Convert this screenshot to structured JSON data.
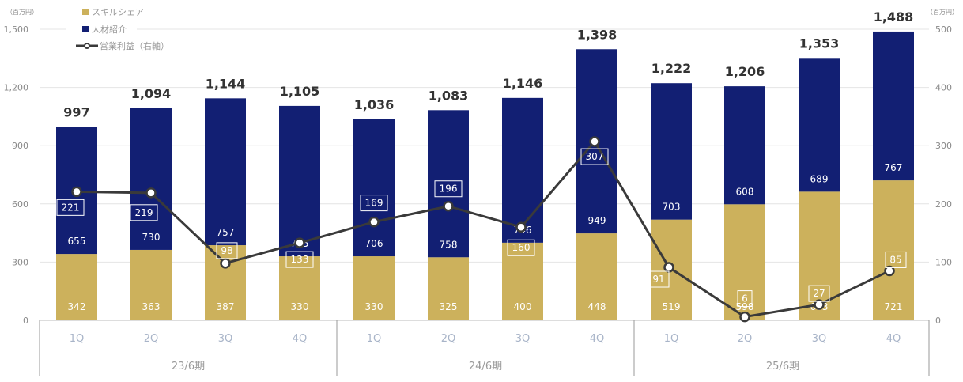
{
  "chart_data": {
    "type": "bar",
    "stacked": true,
    "left_unit": "（百万円）",
    "right_unit": "（百万円）",
    "left_ylim": [
      0,
      1500
    ],
    "right_ylim": [
      0,
      500
    ],
    "left_ticks": [
      "0",
      "300",
      "600",
      "900",
      "1,200",
      "1,500"
    ],
    "right_ticks": [
      "0",
      "100",
      "200",
      "300",
      "400",
      "500"
    ],
    "categories": [
      "1Q",
      "2Q",
      "3Q",
      "4Q",
      "1Q",
      "2Q",
      "3Q",
      "4Q",
      "1Q",
      "2Q",
      "3Q",
      "4Q"
    ],
    "periods": [
      "23/6期",
      "24/6期",
      "25/6期"
    ],
    "series": [
      {
        "name": "スキルシェア",
        "color": "#ccb15c",
        "values": [
          342,
          363,
          387,
          330,
          330,
          325,
          400,
          448,
          519,
          598,
          663,
          721
        ]
      },
      {
        "name": "人材紹介",
        "color": "#121f73",
        "values": [
          655,
          730,
          757,
          775,
          706,
          758,
          746,
          949,
          703,
          608,
          689,
          767
        ]
      }
    ],
    "totals": [
      "997",
      "1,094",
      "1,144",
      "1,105",
      "1,036",
      "1,083",
      "1,146",
      "1,398",
      "1,222",
      "1,206",
      "1,353",
      "1,488"
    ],
    "line": {
      "name": "営業利益（右軸）",
      "color": "#3a3a3a",
      "values": [
        221,
        219,
        98,
        133,
        169,
        196,
        160,
        307,
        91,
        6,
        27,
        85
      ]
    },
    "grid": true,
    "legend": "top-left"
  }
}
